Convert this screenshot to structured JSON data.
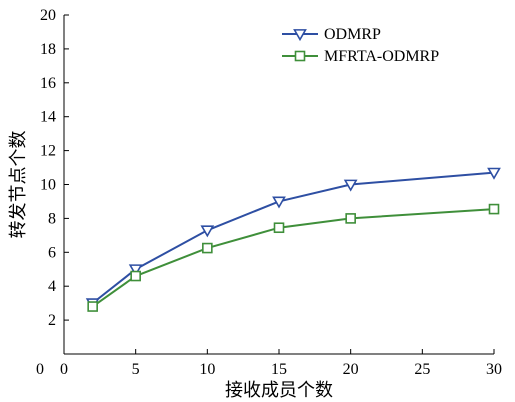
{
  "chart_data": {
    "type": "line",
    "xlabel": "接收成员个数",
    "ylabel": "转发节点个数",
    "xlim": [
      0,
      30
    ],
    "ylim": [
      0,
      20
    ],
    "xticks": [
      0,
      5,
      10,
      15,
      20,
      25,
      30
    ],
    "yticks": [
      2,
      4,
      6,
      8,
      10,
      12,
      14,
      16,
      18,
      20
    ],
    "y_origin_label": "0",
    "grid": false,
    "legend_position": "top-right",
    "series": [
      {
        "name": "ODMRP",
        "color": "#2e4fa3",
        "marker": "triangle-down",
        "x": [
          2,
          5,
          10,
          15,
          20,
          30
        ],
        "y": [
          3.0,
          5.0,
          7.3,
          9.0,
          10.0,
          10.7
        ]
      },
      {
        "name": "MFRTA-ODMRP",
        "color": "#3f8f3a",
        "marker": "square",
        "x": [
          2,
          5,
          10,
          15,
          20,
          30
        ],
        "y": [
          2.8,
          4.6,
          6.25,
          7.45,
          8.0,
          8.55
        ]
      }
    ]
  }
}
